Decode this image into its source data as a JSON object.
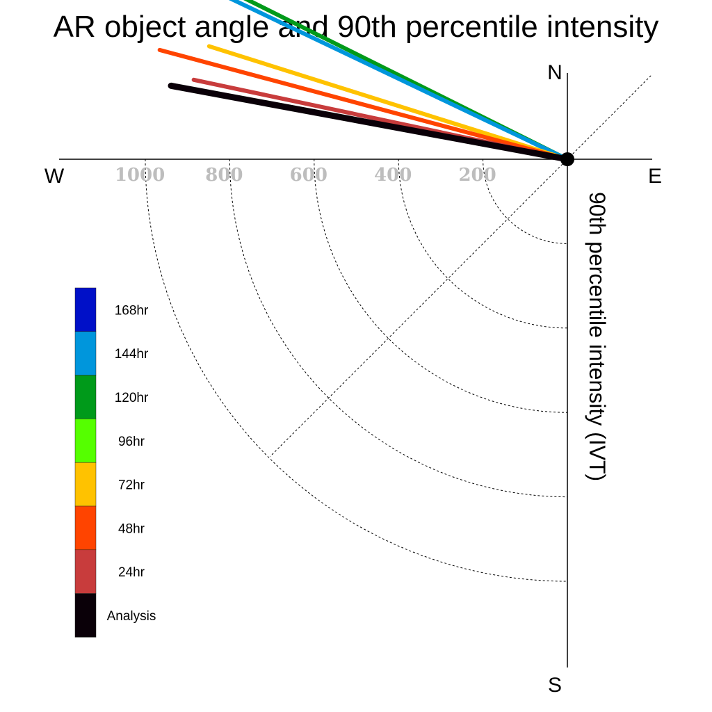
{
  "title": "AR object angle and 90th percentile intensity",
  "chart_data": {
    "type": "polar-vector",
    "title": "AR object angle and 90th percentile intensity",
    "radial_label": "90th percentile intensity (IVT)",
    "compass": {
      "north": "N",
      "south": "S",
      "east": "E",
      "west": "W"
    },
    "radial_ticks": [
      200,
      400,
      600,
      800,
      1000
    ],
    "rmax": 1200,
    "grid": true,
    "series": [
      {
        "name": "Analysis",
        "color": "#0a0008",
        "angle_deg": 190.5,
        "intensity": 955,
        "width": 9
      },
      {
        "name": "24hr",
        "color": "#c83c3c",
        "angle_deg": 192.0,
        "intensity": 905,
        "width": 6
      },
      {
        "name": "48hr",
        "color": "#ff4400",
        "angle_deg": 195.0,
        "intensity": 1000,
        "width": 6
      },
      {
        "name": "72hr",
        "color": "#ffc200",
        "angle_deg": 197.5,
        "intensity": 890,
        "width": 6
      },
      {
        "name": "96hr",
        "color": "#55ff00",
        "angle_deg": 0,
        "intensity": 0,
        "width": 6
      },
      {
        "name": "120hr",
        "color": "#009a1a",
        "angle_deg": 206.5,
        "intensity": 910,
        "width": 6
      },
      {
        "name": "144hr",
        "color": "#0096dc",
        "angle_deg": 205.5,
        "intensity": 890,
        "width": 6
      },
      {
        "name": "168hr",
        "color": "#0010c8",
        "angle_deg": 0,
        "intensity": 0,
        "width": 6
      }
    ],
    "legend": {
      "placement": "left",
      "entries": [
        {
          "label": "168hr",
          "color": "#0010c8"
        },
        {
          "label": "144hr",
          "color": "#0096dc"
        },
        {
          "label": "120hr",
          "color": "#009a1a"
        },
        {
          "label": "96hr",
          "color": "#55ff00"
        },
        {
          "label": "72hr",
          "color": "#ffc200"
        },
        {
          "label": "48hr",
          "color": "#ff4400"
        },
        {
          "label": "24hr",
          "color": "#c83c3c"
        },
        {
          "label": "Analysis",
          "color": "#0a0008"
        }
      ]
    }
  }
}
